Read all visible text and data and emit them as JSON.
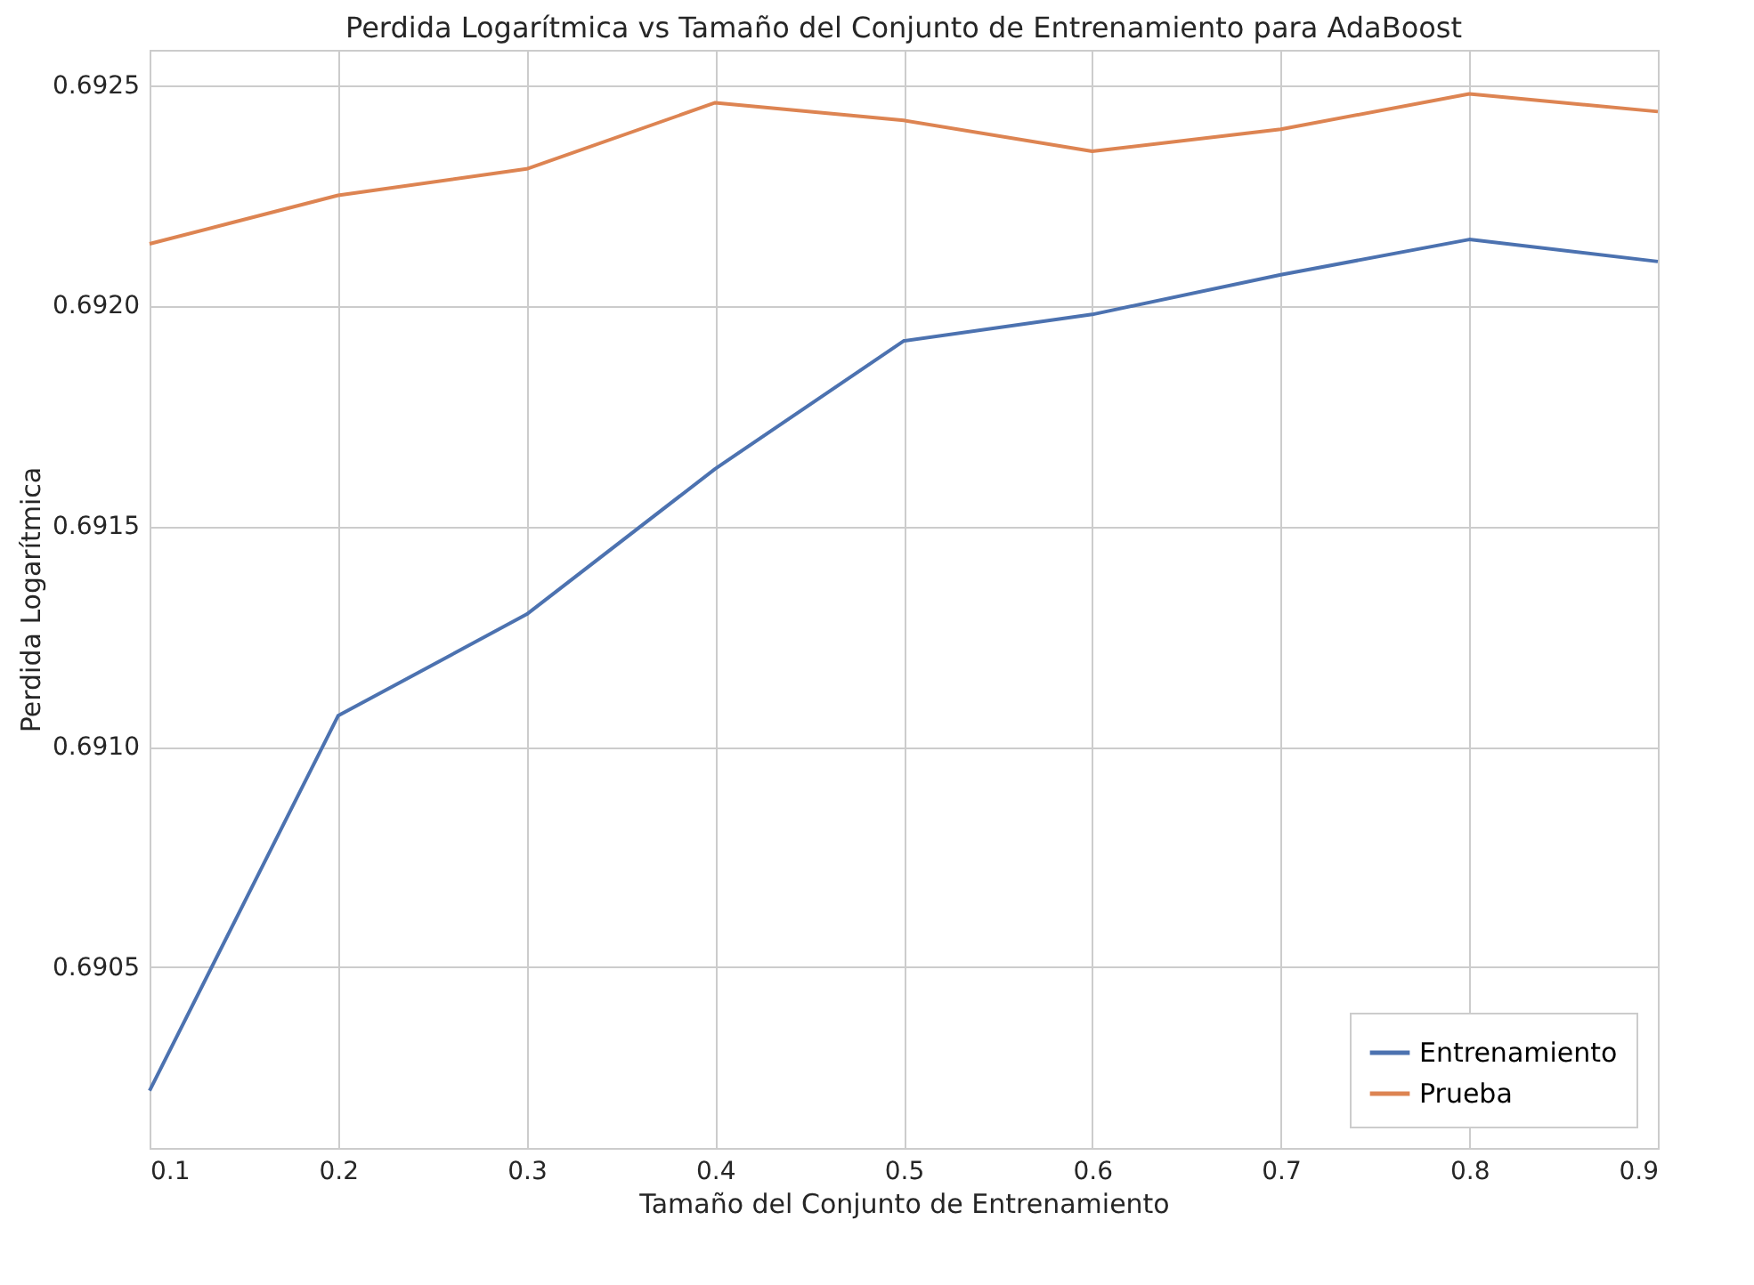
{
  "chart_data": {
    "type": "line",
    "title": "Perdida Logarítmica vs Tamaño del Conjunto de Entrenamiento para AdaBoost",
    "xlabel": "Tamaño del Conjunto de Entrenamiento",
    "ylabel": "Perdida Logarítmica",
    "x": [
      0.1,
      0.2,
      0.3,
      0.4,
      0.5,
      0.6,
      0.7,
      0.8,
      0.9
    ],
    "series": [
      {
        "name": "Entrenamiento",
        "color": "#4c72b0",
        "values": [
          0.69022,
          0.69107,
          0.6913,
          0.69163,
          0.69192,
          0.69198,
          0.69207,
          0.69215,
          0.6921
        ]
      },
      {
        "name": "Prueba",
        "color": "#dd8452",
        "values": [
          0.69214,
          0.69225,
          0.69231,
          0.69246,
          0.69242,
          0.69235,
          0.6924,
          0.69248,
          0.69244
        ]
      }
    ],
    "xlim": [
      0.1,
      0.9
    ],
    "xticks": [
      0.1,
      0.2,
      0.3,
      0.4,
      0.5,
      0.6,
      0.7,
      0.8,
      0.9
    ],
    "ylim": [
      0.69009,
      0.69258
    ],
    "yticks": [
      0.6905,
      {
        "value": 0.691,
        "label": "0.6910"
      },
      0.6915,
      {
        "value": 0.692,
        "label": "0.6920"
      },
      0.6925
    ],
    "grid": true,
    "legend": "bottom right",
    "marker": "none",
    "line_style": "solid"
  }
}
